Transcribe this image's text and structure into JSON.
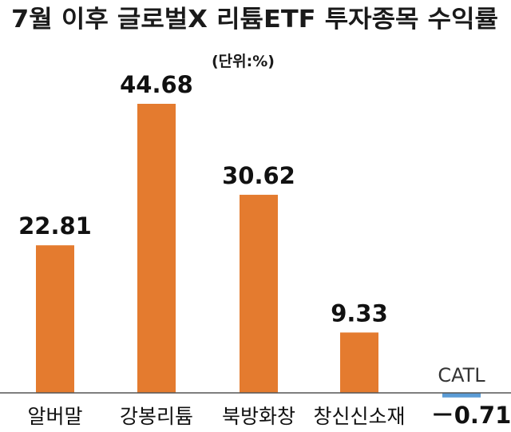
{
  "chart_data": {
    "type": "bar",
    "title": "7월 이후 글로벌X 리튬ETF 투자종목 수익률",
    "unit": "(단위:%)",
    "categories": [
      "알버말",
      "강봉리튬",
      "북방화창",
      "창신신소재",
      "CATL"
    ],
    "values": [
      22.81,
      44.68,
      30.62,
      9.33,
      -0.71
    ],
    "value_labels": [
      "22.81",
      "44.68",
      "30.62",
      "9.33",
      "－0.71"
    ],
    "xlabel": "",
    "ylabel": "",
    "grid": false,
    "legend": "none",
    "colors": {
      "positive_bar": "#e47b2f",
      "negative_bar": "#5b9bd5",
      "baseline": "#555555",
      "text": "#111111"
    }
  }
}
